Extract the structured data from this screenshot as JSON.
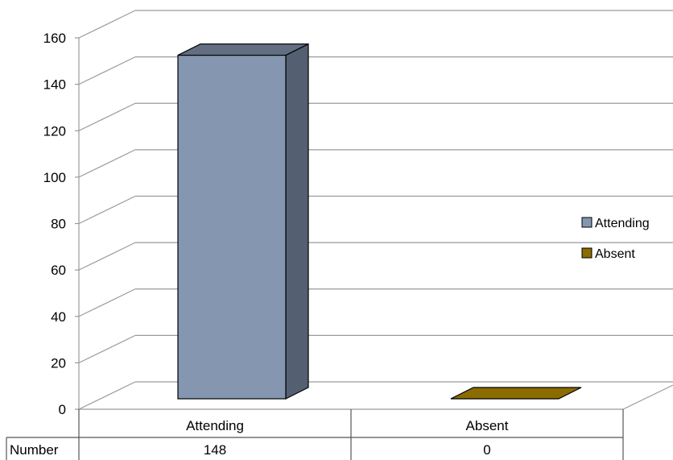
{
  "chart_data": {
    "type": "bar",
    "style": "3d-column",
    "categories": [
      "Attending",
      "Absent"
    ],
    "series": [
      {
        "name": "Attending",
        "color": "#8496b0",
        "values": [
          148,
          null
        ]
      },
      {
        "name": "Absent",
        "color": "#8b6c00",
        "values": [
          null,
          0
        ]
      }
    ],
    "ylim": [
      0,
      160
    ],
    "yticks": [
      0,
      20,
      40,
      60,
      80,
      100,
      120,
      140,
      160
    ],
    "grid": true,
    "legend": "right",
    "data_table": {
      "row_label": "Number",
      "values": [
        "148",
        "0"
      ]
    }
  }
}
